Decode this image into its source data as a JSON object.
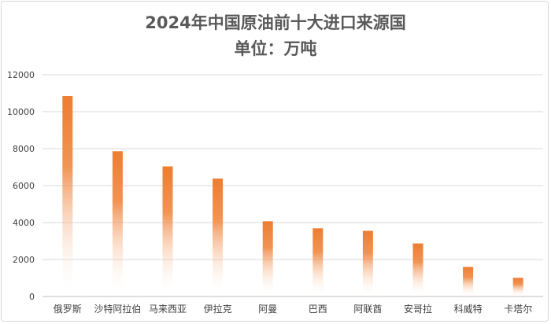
{
  "chart_data": {
    "type": "bar",
    "title": "2024年中国原油前十大进口来源国",
    "subtitle": "单位：万吨",
    "categories": [
      "俄罗斯",
      "沙特阿拉伯",
      "马来西亚",
      "伊拉克",
      "阿曼",
      "巴西",
      "阿联酋",
      "安哥拉",
      "科威特",
      "卡塔尔"
    ],
    "values": [
      10850,
      7860,
      7040,
      6380,
      4070,
      3690,
      3550,
      2870,
      1600,
      1010
    ],
    "xlabel": "",
    "ylabel": "",
    "ylim": [
      0,
      12000
    ],
    "yticks": [
      0,
      2000,
      4000,
      6000,
      8000,
      10000,
      12000
    ],
    "grid": true,
    "legend": "none",
    "colors": {
      "bar_top": "#ED7D31",
      "bar_bottom": "#FFFFFF"
    }
  }
}
